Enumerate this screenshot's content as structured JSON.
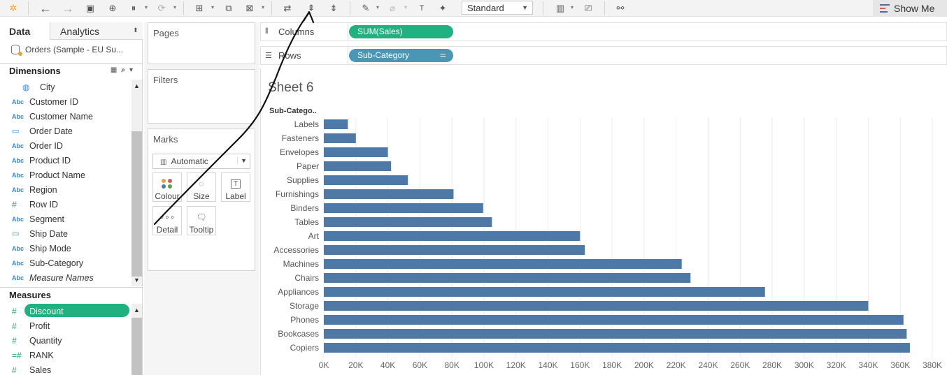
{
  "toolbar": {
    "fit_mode": "Standard",
    "show_me": "Show Me"
  },
  "data_pane": {
    "tab_data": "Data",
    "tab_analytics": "Analytics",
    "datasource": "Orders (Sample - EU Su...",
    "dimensions_title": "Dimensions",
    "dimensions": [
      {
        "type": "geo",
        "icon": "◍",
        "label": "City"
      },
      {
        "type": "abc",
        "icon": "Abc",
        "label": "Customer ID"
      },
      {
        "type": "abc",
        "icon": "Abc",
        "label": "Customer Name"
      },
      {
        "type": "cal",
        "icon": "▭",
        "label": "Order Date"
      },
      {
        "type": "abc",
        "icon": "Abc",
        "label": "Order ID"
      },
      {
        "type": "abc",
        "icon": "Abc",
        "label": "Product ID"
      },
      {
        "type": "abc",
        "icon": "Abc",
        "label": "Product Name"
      },
      {
        "type": "abc",
        "icon": "Abc",
        "label": "Region"
      },
      {
        "type": "num",
        "icon": "#",
        "label": "Row ID"
      },
      {
        "type": "abc",
        "icon": "Abc",
        "label": "Segment"
      },
      {
        "type": "cal",
        "icon": "▭",
        "label": "Ship Date"
      },
      {
        "type": "abc",
        "icon": "Abc",
        "label": "Ship Mode"
      },
      {
        "type": "abc",
        "icon": "Abc",
        "label": "Sub-Category"
      },
      {
        "type": "abc",
        "icon": "Abc",
        "label": "Measure Names",
        "italic": true
      }
    ],
    "measures_title": "Measures",
    "measures": [
      {
        "type": "num",
        "icon": "#",
        "label": "Discount",
        "selected": true
      },
      {
        "type": "num",
        "icon": "#",
        "label": "Profit"
      },
      {
        "type": "num",
        "icon": "#",
        "label": "Quantity"
      },
      {
        "type": "num",
        "icon": "=#",
        "label": "RANK"
      },
      {
        "type": "num",
        "icon": "#",
        "label": "Sales"
      }
    ]
  },
  "cards": {
    "pages": "Pages",
    "filters": "Filters",
    "marks": "Marks",
    "marks_type": "Automatic",
    "colour": "Colour",
    "size": "Size",
    "label": "Label",
    "detail": "Detail",
    "tooltip": "Tooltip"
  },
  "shelves": {
    "columns_label": "Columns",
    "columns_pill": "SUM(Sales)",
    "rows_label": "Rows",
    "rows_pill": "Sub-Category"
  },
  "sheet": {
    "title": "Sheet 6",
    "row_header": "Sub-Catego.."
  },
  "chart_data": {
    "type": "bar",
    "orientation": "horizontal",
    "categories": [
      "Labels",
      "Fasteners",
      "Envelopes",
      "Paper",
      "Supplies",
      "Furnishings",
      "Binders",
      "Tables",
      "Art",
      "Accessories",
      "Machines",
      "Chairs",
      "Appliances",
      "Storage",
      "Phones",
      "Bookcases",
      "Copiers"
    ],
    "values": [
      15000,
      20000,
      40000,
      42000,
      52500,
      81000,
      99500,
      105000,
      160000,
      163000,
      223500,
      229000,
      275500,
      340000,
      362000,
      364000,
      366000
    ],
    "xlim": [
      0,
      380000
    ],
    "x_ticks": [
      "0K",
      "20K",
      "40K",
      "60K",
      "80K",
      "100K",
      "120K",
      "140K",
      "160K",
      "180K",
      "200K",
      "220K",
      "240K",
      "260K",
      "280K",
      "300K",
      "320K",
      "340K",
      "360K",
      "380K"
    ],
    "bar_color": "#4e79a7",
    "grid": true
  }
}
